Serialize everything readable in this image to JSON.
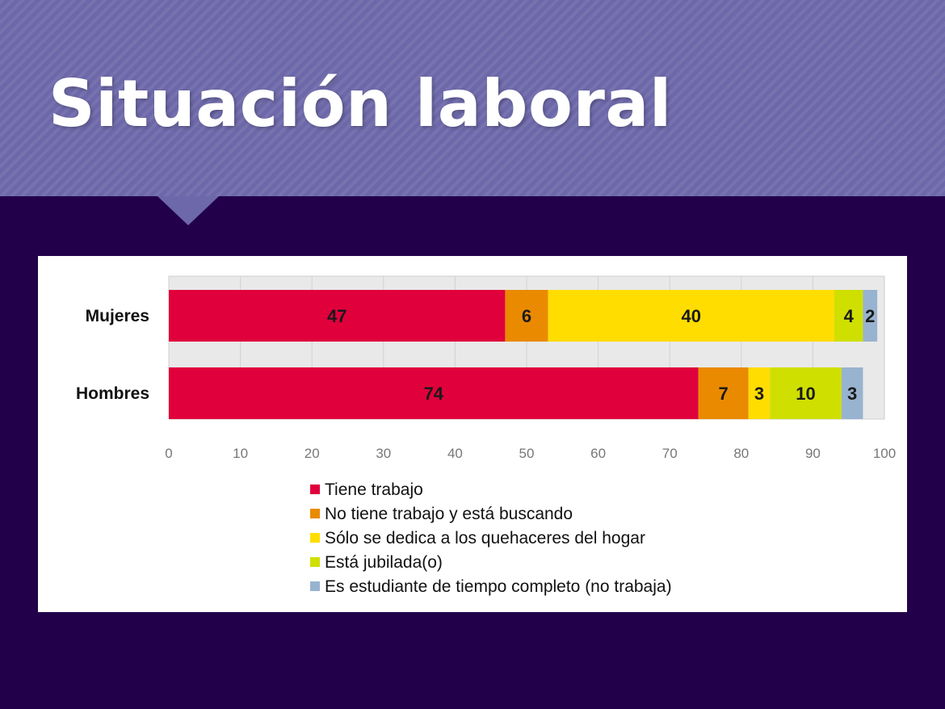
{
  "slide": {
    "title": "Situación laboral"
  },
  "chart_data": {
    "type": "bar",
    "orientation": "horizontal",
    "stacked": true,
    "categories": [
      "Mujeres",
      "Hombres"
    ],
    "series": [
      {
        "name": "Tiene trabajo",
        "color": "#e0003c",
        "values": [
          47,
          74
        ]
      },
      {
        "name": "No tiene trabajo y está buscando",
        "color": "#ea8a00",
        "values": [
          6,
          7
        ]
      },
      {
        "name": "Sólo se dedica a los quehaceres del hogar",
        "color": "#ffdd00",
        "values": [
          40,
          3
        ]
      },
      {
        "name": "Está jubilada(o)",
        "color": "#cfdf00",
        "values": [
          4,
          10
        ]
      },
      {
        "name": "Es estudiante de tiempo completo (no trabaja)",
        "color": "#98b3cf",
        "values": [
          2,
          3
        ]
      }
    ],
    "xlim": [
      0,
      100
    ],
    "xticks": [
      0,
      10,
      20,
      30,
      40,
      50,
      60,
      70,
      80,
      90,
      100
    ],
    "title": "",
    "xlabel": "",
    "ylabel": "",
    "grid": true,
    "legend_position": "bottom"
  }
}
